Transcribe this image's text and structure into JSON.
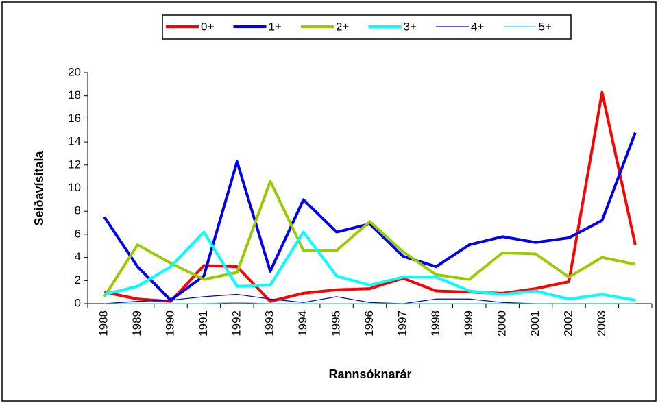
{
  "chart_data": {
    "type": "line",
    "x_label": "Rannsóknarár",
    "y_label": "Seiðavísitala",
    "categories": [
      "1988",
      "1989",
      "1990",
      "1991",
      "1992",
      "1993",
      "1994",
      "1995",
      "1996",
      "1997",
      "1998",
      "1999",
      "2000",
      "2001",
      "2002",
      "2003",
      null
    ],
    "series": [
      {
        "name": "0+",
        "color": "#ff0000",
        "line_width": 4,
        "values": [
          1.0,
          0.4,
          0.2,
          3.3,
          3.2,
          0.2,
          0.9,
          1.2,
          1.3,
          2.2,
          1.1,
          1.0,
          0.9,
          1.3,
          1.9,
          18.3,
          5.1
        ]
      },
      {
        "name": "1+",
        "color": "#0000ee",
        "line_width": 4,
        "values": [
          7.5,
          3.2,
          0.3,
          2.4,
          12.3,
          2.8,
          9.0,
          6.2,
          6.9,
          4.1,
          3.2,
          5.1,
          5.8,
          5.3,
          5.7,
          7.2,
          14.8
        ]
      },
      {
        "name": "2+",
        "color": "#99cc00",
        "line_width": 4,
        "values": [
          0.6,
          5.1,
          3.5,
          2.1,
          2.7,
          10.6,
          4.6,
          4.6,
          7.1,
          4.5,
          2.5,
          2.1,
          4.4,
          4.3,
          2.3,
          4.0,
          3.4
        ]
      },
      {
        "name": "3+",
        "color": "#00ffff",
        "line_width": 4,
        "values": [
          0.8,
          1.5,
          3.2,
          6.2,
          1.5,
          1.6,
          6.2,
          2.4,
          1.6,
          2.3,
          2.3,
          1.1,
          0.8,
          1.1,
          0.4,
          0.8,
          0.3
        ]
      },
      {
        "name": "4+",
        "color": "#0000cc",
        "line_width": 1.2,
        "values": [
          0.0,
          0.2,
          0.3,
          0.6,
          0.8,
          0.4,
          0.1,
          0.6,
          0.1,
          0.0,
          0.4,
          0.4,
          0.1,
          0.0,
          0.0,
          0.0,
          0.0
        ]
      },
      {
        "name": "5+",
        "color": "#33ccff",
        "line_width": 1.2,
        "values": [
          0.0,
          0.0,
          0.0,
          0.0,
          0.1,
          0.0,
          0.0,
          0.0,
          0.0,
          0.0,
          0.0,
          0.0,
          0.0,
          0.0,
          0.0,
          0.0,
          0.0
        ]
      }
    ],
    "ylim": [
      0,
      20
    ],
    "yticks": [
      0,
      2,
      4,
      6,
      8,
      10,
      12,
      14,
      16,
      18,
      20
    ],
    "legend": "top"
  }
}
